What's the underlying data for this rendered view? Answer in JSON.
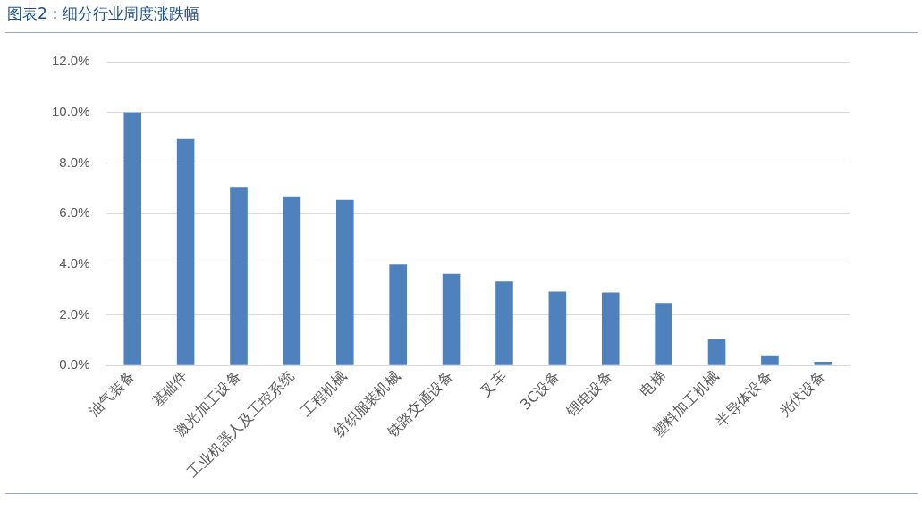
{
  "chart_data": {
    "type": "bar",
    "title": "图表2：细分行业周度涨跌幅",
    "categories": [
      "油气装备",
      "基础件",
      "激光加工设备",
      "工业机器人及工控系统",
      "工程机械",
      "纺织服装机械",
      "铁路交通设备",
      "叉车",
      "3C设备",
      "锂电设备",
      "电梯",
      "塑料加工机械",
      "半导体设备",
      "光伏设备"
    ],
    "values": [
      10.0,
      8.94,
      7.05,
      6.68,
      6.54,
      3.99,
      3.62,
      3.32,
      2.92,
      2.88,
      2.47,
      1.03,
      0.41,
      0.15
    ],
    "color": "#4f81bd",
    "ylim": [
      0,
      12
    ],
    "yticks": [
      {
        "value": 0,
        "label": "0.0%"
      },
      {
        "value": 2,
        "label": "2.0%"
      },
      {
        "value": 4,
        "label": "4.0%"
      },
      {
        "value": 6,
        "label": "6.0%"
      },
      {
        "value": 8,
        "label": "8.0%"
      },
      {
        "value": 10,
        "label": "10.0%"
      },
      {
        "value": 12,
        "label": "12.0%"
      }
    ],
    "grid": "y",
    "legend": false
  }
}
